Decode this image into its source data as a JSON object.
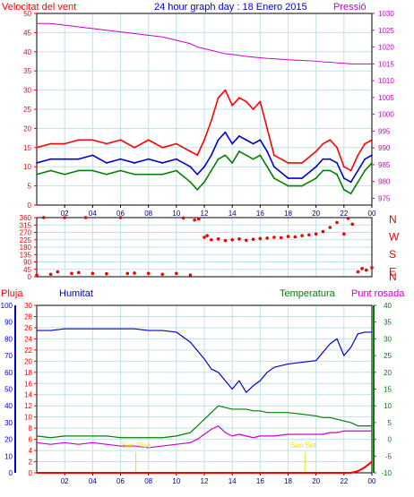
{
  "header": {
    "left_label": "Velocitat del vent",
    "title": "24 hour graph day : 18 Enero 2015",
    "right_label": "Pressió"
  },
  "lower_labels": {
    "rain": "Pluja",
    "humidity": "Humitat",
    "temperature": "Temperatura",
    "dewpoint": "Punt rosada"
  },
  "annotations": {
    "sunrise": "Sun Rise",
    "sunset": "Sun Set"
  },
  "colors": {
    "wind_gust": "#ff0000",
    "wind_avg": "#0000cc",
    "wind_min": "#008000",
    "pressure": "#cc00cc",
    "direction": "#ee0000",
    "humidity": "#0000cc",
    "temperature": "#008000",
    "dewpoint": "#cc00cc",
    "rain": "#ff0000",
    "grid": "#bfe3e8",
    "frame": "#000000",
    "sun": "#e6e600"
  },
  "chart_data": [
    {
      "type": "line",
      "name": "wind-and-pressure",
      "x_ticks": [
        "02",
        "04",
        "06",
        "08",
        "10",
        "12",
        "14",
        "16",
        "18",
        "20",
        "22",
        "00"
      ],
      "y_left": {
        "ticks": [
          0,
          5,
          10,
          15,
          20,
          25,
          30,
          35,
          40,
          45,
          50
        ],
        "ylim": [
          0,
          50
        ]
      },
      "y_right": {
        "ticks": [
          975,
          980,
          985,
          990,
          995,
          1000,
          1005,
          1010,
          1015,
          1020,
          1025,
          1030
        ],
        "ylim": [
          973,
          1030
        ]
      },
      "x": [
        0,
        1,
        2,
        3,
        4,
        5,
        6,
        7,
        8,
        9,
        10,
        11,
        11.5,
        12,
        12.5,
        13,
        13.5,
        14,
        14.5,
        15,
        15.5,
        16,
        16.5,
        17,
        18,
        19,
        20,
        20.5,
        21,
        21.5,
        22,
        22.5,
        23,
        23.5,
        24
      ],
      "series": [
        {
          "key": "gust",
          "axis": "left",
          "values": [
            15,
            16,
            16,
            17,
            17,
            16,
            17,
            15,
            17,
            15,
            16,
            14,
            13,
            17,
            22,
            28,
            30,
            26,
            28,
            27,
            25,
            27,
            20,
            13,
            11,
            11,
            14,
            16,
            17,
            15,
            10,
            9,
            13,
            16,
            17
          ]
        },
        {
          "key": "avg",
          "axis": "left",
          "values": [
            11,
            12,
            12,
            12,
            13,
            11,
            12,
            11,
            12,
            11,
            12,
            10,
            8,
            10,
            13,
            17,
            19,
            16,
            18,
            17,
            16,
            17,
            14,
            10,
            7,
            7,
            10,
            12,
            12,
            11,
            7,
            6,
            9,
            12,
            13
          ]
        },
        {
          "key": "min",
          "axis": "left",
          "values": [
            8,
            9,
            8,
            9,
            9,
            8,
            9,
            8,
            8,
            8,
            9,
            6,
            4,
            6,
            9,
            12,
            13,
            11,
            14,
            13,
            12,
            13,
            10,
            7,
            5,
            5,
            7,
            9,
            9,
            8,
            4,
            3,
            6,
            9,
            11
          ]
        },
        {
          "key": "pressure",
          "axis": "right",
          "values": [
            1027,
            1027,
            1026.5,
            1026,
            1025.5,
            1025,
            1024.5,
            1024,
            1023.5,
            1023,
            1022,
            1021,
            1020,
            1019.5,
            1019,
            1018.5,
            1018,
            1017.8,
            1017.5,
            1017.2,
            1017,
            1016.8,
            1016.6,
            1016.5,
            1016.2,
            1016,
            1015.8,
            1015.6,
            1015.5,
            1015.3,
            1015.2,
            1015,
            1015,
            1015,
            1015
          ]
        }
      ]
    },
    {
      "type": "scatter",
      "name": "wind-direction",
      "y": {
        "ticks": [
          0,
          45,
          90,
          135,
          180,
          225,
          270,
          315,
          360
        ],
        "ylim": [
          0,
          360
        ]
      },
      "compass": [
        "N",
        "W",
        "S",
        "E",
        "N"
      ],
      "x": [
        0,
        0.5,
        1,
        1.5,
        2,
        2.5,
        3,
        3.5,
        4,
        5,
        6,
        6.5,
        7,
        8,
        9,
        10,
        10.5,
        11,
        11.3,
        11.6,
        12,
        12.2,
        12.5,
        13,
        13.5,
        14,
        14.5,
        15,
        15.5,
        16,
        16.5,
        17,
        17.5,
        18,
        18.5,
        19,
        19.5,
        20,
        20.5,
        21,
        21.5,
        22,
        22.3,
        22.6,
        23,
        23.3,
        23.6,
        24
      ],
      "values": [
        10,
        360,
        15,
        30,
        360,
        20,
        25,
        360,
        20,
        18,
        360,
        20,
        22,
        20,
        15,
        20,
        358,
        10,
        345,
        352,
        240,
        250,
        225,
        230,
        220,
        225,
        230,
        222,
        228,
        232,
        235,
        240,
        238,
        245,
        242,
        250,
        255,
        260,
        275,
        300,
        330,
        260,
        355,
        320,
        30,
        50,
        40,
        55
      ]
    },
    {
      "type": "line",
      "name": "rain-humidity-temperature",
      "x_ticks": [
        "02",
        "04",
        "06",
        "08",
        "10",
        "12",
        "14",
        "16",
        "18",
        "20",
        "22",
        "00"
      ],
      "y_humidity": {
        "ticks": [
          0,
          10,
          20,
          30,
          40,
          50,
          60,
          70,
          80,
          90,
          100
        ],
        "ylim": [
          0,
          100
        ]
      },
      "y_rain": {
        "ticks": [
          0,
          2,
          4,
          6,
          8,
          10,
          12,
          14,
          16,
          18,
          20,
          22,
          24,
          26,
          28,
          30
        ],
        "ylim": [
          0,
          30
        ]
      },
      "y_temperature": {
        "ticks": [
          -10,
          -5,
          0,
          5,
          10,
          15,
          20,
          25,
          30,
          35,
          40
        ],
        "ylim": [
          -10,
          40
        ]
      },
      "x": [
        0,
        1,
        2,
        3,
        4,
        5,
        6,
        7,
        8,
        9,
        10,
        11,
        11.5,
        12,
        12.5,
        13,
        13.5,
        14,
        14.5,
        15,
        15.5,
        16,
        16.5,
        17,
        18,
        19,
        20,
        20.5,
        21,
        21.5,
        22,
        22.5,
        23,
        23.5,
        24
      ],
      "series": [
        {
          "key": "humidity",
          "axis": "humidity",
          "values": [
            85,
            85,
            86,
            86,
            86,
            86,
            86,
            86,
            85,
            85,
            84,
            78,
            73,
            68,
            62,
            60,
            55,
            50,
            55,
            48,
            52,
            55,
            60,
            63,
            65,
            66,
            67,
            72,
            77,
            80,
            70,
            75,
            83,
            84,
            84
          ]
        },
        {
          "key": "temperature",
          "axis": "temperature",
          "values": [
            1,
            0.5,
            1,
            1,
            1,
            1,
            0.5,
            0.5,
            0.5,
            0.5,
            1,
            2,
            4,
            6,
            8,
            10,
            9.5,
            9,
            9,
            9,
            8.5,
            8.5,
            8,
            8,
            8,
            7.5,
            7,
            6.5,
            6.5,
            6,
            5.5,
            5,
            4,
            4,
            4
          ]
        },
        {
          "key": "dewpoint",
          "axis": "temperature",
          "values": [
            -1,
            -1.5,
            -1,
            -1.5,
            -1,
            -1.5,
            -2,
            -2,
            -2.5,
            -2,
            -1.5,
            -1,
            0,
            1.5,
            3,
            4,
            2,
            1,
            1.5,
            1,
            0.5,
            1,
            1,
            1,
            1.5,
            1.5,
            1.5,
            1.5,
            2,
            2,
            2.5,
            2.5,
            2.5,
            2.5,
            2.5
          ]
        },
        {
          "key": "rain",
          "axis": "rain",
          "values": [
            0,
            0,
            0,
            0,
            0,
            0,
            0,
            0,
            0,
            0,
            0,
            0,
            0,
            0,
            0,
            0,
            0,
            0,
            0,
            0,
            0,
            0,
            0,
            0,
            0,
            0,
            0,
            0,
            0,
            0,
            0,
            0,
            0.3,
            1,
            2
          ]
        }
      ],
      "sunrise_hour": 7.1,
      "sunset_hour": 19.2
    }
  ]
}
